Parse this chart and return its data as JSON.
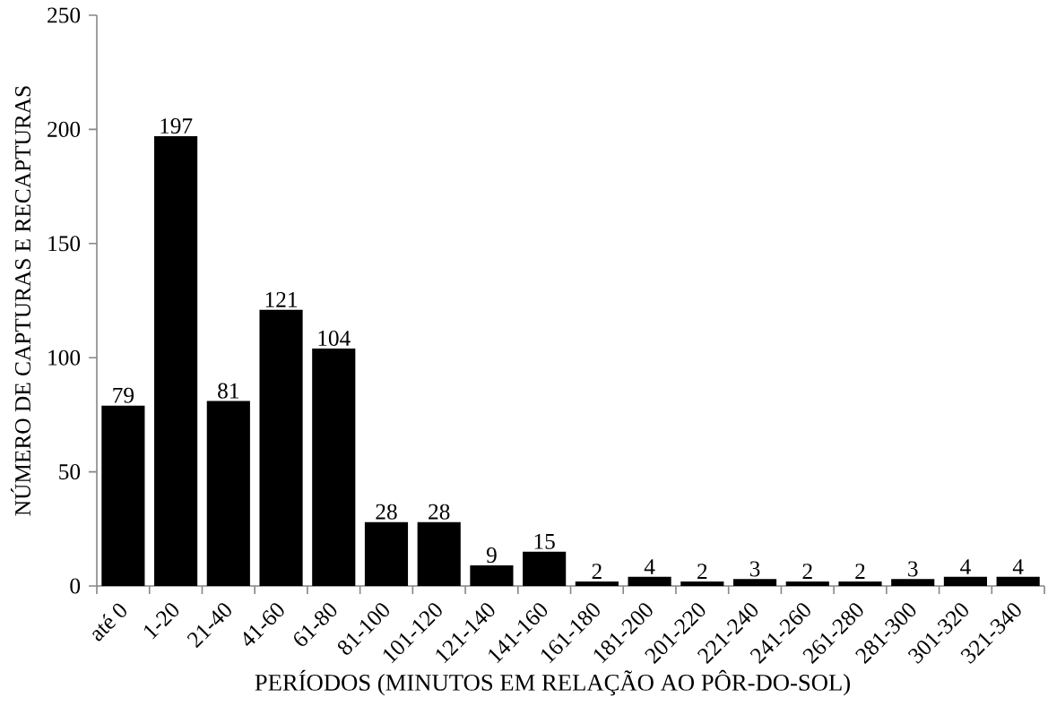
{
  "chart_data": {
    "type": "bar",
    "xlabel": "PERÍODOS (MINUTOS EM RELAÇÃO AO PÔR-DO-SOL)",
    "ylabel": "NÚMERO DE CAPTURAS E RECAPTURAS",
    "categories": [
      "até 0",
      "1-20",
      "21-40",
      "41-60",
      "61-80",
      "81-100",
      "101-120",
      "121-140",
      "141-160",
      "161-180",
      "181-200",
      "201-220",
      "221-240",
      "241-260",
      "261-280",
      "281-300",
      "301-320",
      "321-340"
    ],
    "values": [
      79,
      197,
      81,
      121,
      104,
      28,
      28,
      9,
      15,
      2,
      4,
      2,
      3,
      2,
      2,
      3,
      4,
      4
    ],
    "color": "#000000",
    "ylim": [
      0,
      250
    ],
    "yticks": [
      0,
      50,
      100,
      150,
      200,
      250
    ],
    "data_labels": true
  }
}
